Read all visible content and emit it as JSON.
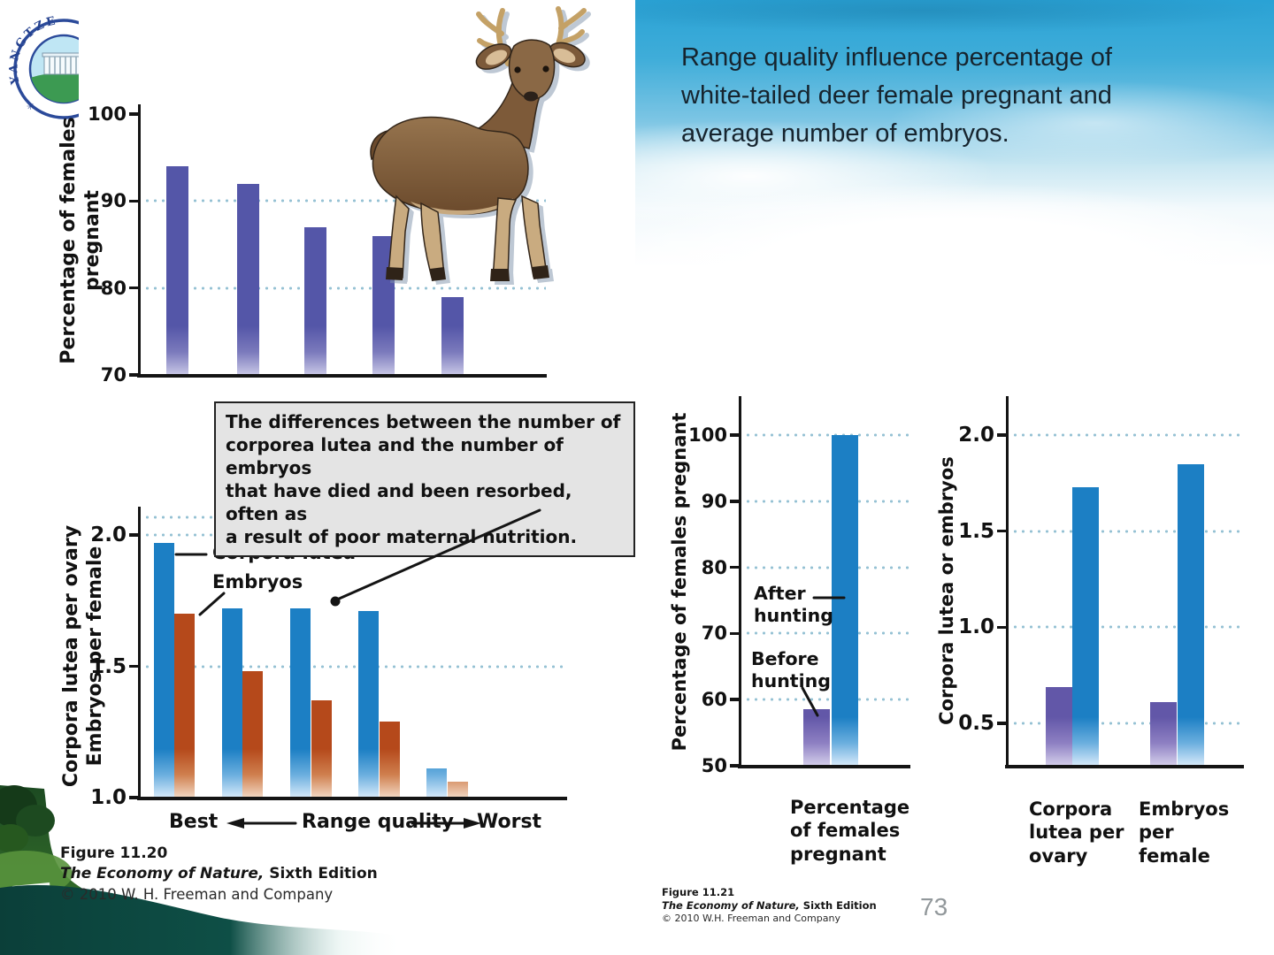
{
  "slide": {
    "title": "Range quality influence percentage of white-tailed deer female pregnant and average number of embryos.",
    "title_lines": "Range quality influence percentage of\nwhite-tailed deer female pregnant and\naverage number of embryos.",
    "page_number": "73",
    "logo_text": "YANGTZE"
  },
  "callout": {
    "text": "The differences between the number of\ncorporea lutea and the number of embryos\nthat have died and been resorbed, often as\na result of poor maternal nutrition."
  },
  "figure_1120": {
    "label": "Figure 11.20",
    "book": "The Economy of Nature,",
    "edition": " Sixth Edition",
    "copyright": "© 2010 W. H. Freeman and Company"
  },
  "figure_1121": {
    "label": "Figure 11.21",
    "book": "The Economy of Nature,",
    "edition": " Sixth Edition",
    "copyright": "© 2010 W.H. Freeman and Company"
  },
  "palette": {
    "axis": "#141414",
    "gridline": "#96c2d4",
    "purple": "#5456a8",
    "purple_right": "#6257a8",
    "blue": "#1c7fc4",
    "orange_red": "#b5491b",
    "sky_top": "#2aa2d5"
  },
  "chart_data": [
    {
      "id": "females-pregnant-by-range-quality",
      "type": "bar",
      "ylabel": "Percentage of females\npregnant",
      "ylim": [
        70,
        100
      ],
      "yticks": [
        "100",
        "90",
        "80",
        "70"
      ],
      "gridlines": [
        90,
        80
      ],
      "values": [
        94,
        92,
        87,
        86,
        79
      ],
      "bar_color": "#5456a8"
    },
    {
      "id": "corpora-lutea-and-embryos-by-range-quality",
      "type": "grouped-bar",
      "ylabel_lines": [
        "Corpora lutea per ovary",
        "Embryos per female"
      ],
      "ylim": [
        1.0,
        2.1
      ],
      "yticks": [
        "2.0",
        "1.5",
        "1.0"
      ],
      "gridlines": [
        2.0,
        1.5
      ],
      "series": [
        {
          "name": "Corpora lutea",
          "color": "#1c7fc4",
          "values": [
            1.97,
            1.72,
            1.72,
            1.71,
            1.11
          ]
        },
        {
          "name": "Embryos",
          "color": "#b5491b",
          "values": [
            1.7,
            1.48,
            1.37,
            1.29,
            1.06
          ]
        }
      ],
      "x_axis": {
        "left_label": "Best",
        "center_label": "Range quality",
        "right_label": "Worst"
      }
    },
    {
      "id": "females-pregnant-before-after-hunting",
      "type": "bar",
      "ylabel": "Percentage of females pregnant",
      "ylim": [
        50,
        105
      ],
      "yticks": [
        "100",
        "90",
        "80",
        "70",
        "60",
        "50"
      ],
      "gridlines": [
        100,
        90,
        80,
        70,
        60
      ],
      "bars": [
        {
          "name": "Before\nhunting",
          "value": 58.5,
          "color": "#6257a8"
        },
        {
          "name": "After\nhunting",
          "value": 100,
          "color": "#1c7fc4"
        }
      ],
      "xlabel": "Percentage\nof females\npregnant"
    },
    {
      "id": "corpora-lutea-embryos-before-after-hunting",
      "type": "grouped-bar",
      "ylabel": "Corpora lutea or embryos",
      "ylim": [
        0.28,
        2.15
      ],
      "yticks": [
        "2.0",
        "1.5",
        "1.0",
        "0.5"
      ],
      "gridlines": [
        2.0,
        1.5,
        1.0,
        0.5
      ],
      "categories": [
        "Corpora\nlutea per\novary",
        "Embryos\nper\nfemale"
      ],
      "series": [
        {
          "name": "Before hunting",
          "color": "#6257a8",
          "values": [
            0.69,
            0.61
          ]
        },
        {
          "name": "After hunting",
          "color": "#1c7fc4",
          "values": [
            1.73,
            1.85
          ]
        }
      ]
    }
  ]
}
